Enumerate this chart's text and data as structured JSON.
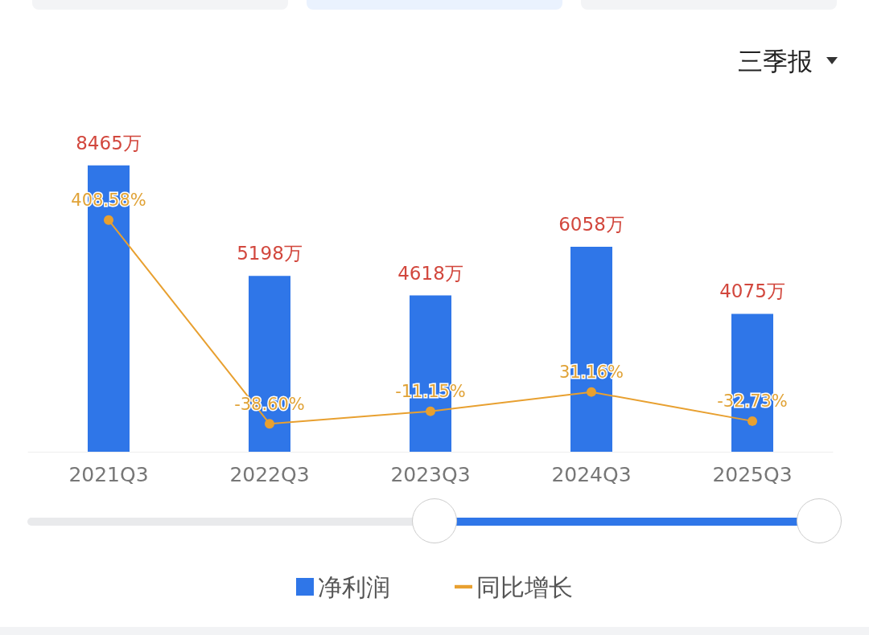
{
  "chart_data": {
    "type": "bar",
    "annotations": [
      "三季报"
    ],
    "legend": "bottom",
    "marker": "circle",
    "categories": [
      "2021Q3",
      "2022Q3",
      "2023Q3",
      "2024Q3",
      "2025Q3"
    ],
    "series": [
      {
        "name": "净利润",
        "color": "#2f76e8",
        "values": [
          8465,
          5198,
          4618,
          6058,
          4075
        ],
        "value_labels": [
          "8465万",
          "5198万",
          "4618万",
          "6058万",
          "4075万"
        ]
      },
      {
        "name": "同比增长",
        "type": "line",
        "axis": "y2",
        "color": "#e8a030",
        "values": [
          408.58,
          -38.6,
          -11.15,
          31.16,
          -32.73
        ],
        "value_labels": [
          "408.58%",
          "-38.60%",
          "-11.15%",
          "31.16%",
          "-32.73%"
        ]
      }
    ]
  }
}
